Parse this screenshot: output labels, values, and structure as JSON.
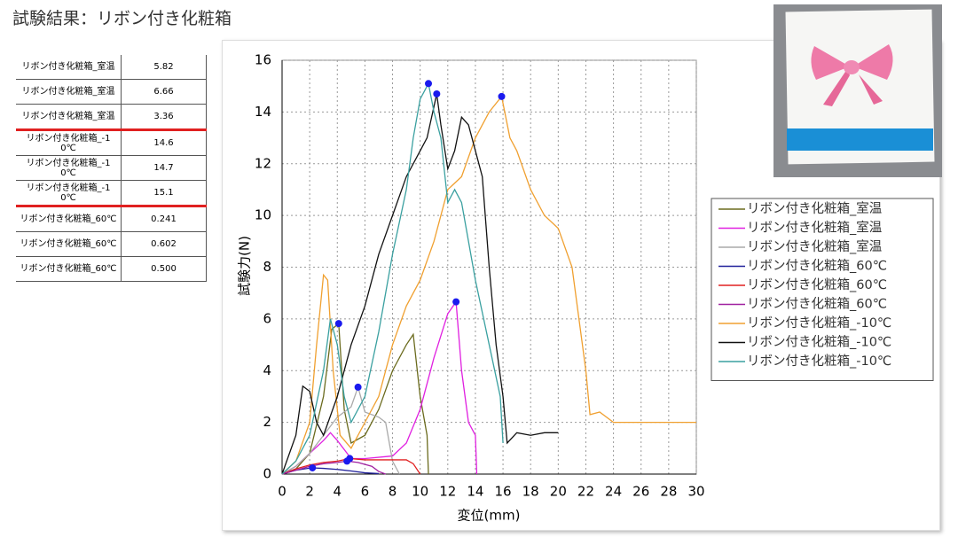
{
  "title": "試験結果：リボン付き化粧箱",
  "table": {
    "rows": [
      [
        "リボン付き化粧箱_室温",
        "5.82"
      ],
      [
        "リボン付き化粧箱_室温",
        "6.66"
      ],
      [
        "リボン付き化粧箱_室温",
        "3.36"
      ],
      [
        "リボン付き化粧箱_-10℃",
        "14.6"
      ],
      [
        "リボン付き化粧箱_-10℃",
        "14.7"
      ],
      [
        "リボン付き化粧箱_-10℃",
        "15.1"
      ],
      [
        "リボン付き化粧箱_60℃",
        "0.241"
      ],
      [
        "リボン付き化粧箱_60℃",
        "0.602"
      ],
      [
        "リボン付き化粧箱_60℃",
        "0.500"
      ]
    ]
  },
  "chart_data": {
    "type": "line",
    "x_label": "変位(mm)",
    "y_label": "試験力(N)",
    "xlim": [
      0,
      30
    ],
    "xticks": [
      0,
      2,
      4,
      6,
      8,
      10,
      12,
      14,
      16,
      18,
      20,
      22,
      24,
      26,
      28,
      30
    ],
    "ylim": [
      0,
      16
    ],
    "yticks": [
      0,
      2,
      4,
      6,
      8,
      10,
      12,
      14,
      16
    ],
    "grid": true,
    "legend": "right",
    "series": [
      {
        "name": "リボン付き化粧箱_室温",
        "color": "#6b6b1e",
        "peak": {
          "x": 4.1,
          "y": 5.82
        },
        "x": [
          0,
          1,
          2,
          3,
          3.6,
          4.1,
          4.5,
          5,
          6,
          7,
          8,
          9,
          9.5,
          10,
          10.5,
          10.6
        ],
        "values": [
          0,
          0.2,
          0.8,
          3,
          5.6,
          5.82,
          2.5,
          1.2,
          1.5,
          2.5,
          4,
          5,
          5.4,
          3,
          1.5,
          0
        ]
      },
      {
        "name": "リボン付き化粧箱_室温",
        "color": "#e020e0",
        "peak": {
          "x": 12.6,
          "y": 6.66
        },
        "x": [
          0,
          1,
          2,
          3,
          3.5,
          4,
          5,
          6,
          8,
          9,
          10,
          11,
          12,
          12.6,
          13,
          13.5,
          14,
          14.1
        ],
        "values": [
          0,
          0.3,
          0.8,
          1.3,
          1.6,
          1.3,
          0.6,
          0.6,
          0.7,
          1.2,
          2.5,
          4.5,
          6.2,
          6.66,
          4,
          2,
          1.5,
          0
        ]
      },
      {
        "name": "リボン付き化粧箱_室温",
        "color": "#aaaaaa",
        "peak": {
          "x": 5.5,
          "y": 3.36
        },
        "x": [
          0,
          1,
          2,
          3,
          4,
          5,
          5.5,
          6,
          7,
          7.5,
          8,
          8.5
        ],
        "values": [
          0,
          0.3,
          0.8,
          1.5,
          2.2,
          2.6,
          3.36,
          2.4,
          2.2,
          2,
          0.5,
          0
        ]
      },
      {
        "name": "リボン付き化粧箱_60℃",
        "color": "#20209a",
        "peak": {
          "x": 2.2,
          "y": 0.241
        },
        "x": [
          0,
          1,
          2,
          2.2,
          3,
          4,
          5,
          6,
          7
        ],
        "values": [
          0,
          0.15,
          0.23,
          0.241,
          0.22,
          0.18,
          0.12,
          0.05,
          0.02
        ]
      },
      {
        "name": "リボン付き化粧箱_60℃",
        "color": "#e02020",
        "peak": {
          "x": 4.9,
          "y": 0.602
        },
        "x": [
          0,
          1,
          2,
          3,
          4,
          4.9,
          6,
          8,
          9,
          9.5,
          10
        ],
        "values": [
          0,
          0.2,
          0.35,
          0.45,
          0.5,
          0.602,
          0.55,
          0.55,
          0.55,
          0.4,
          0
        ]
      },
      {
        "name": "リボン付き化粧箱_60℃",
        "color": "#a020a0",
        "peak": {
          "x": 4.7,
          "y": 0.5
        },
        "x": [
          0,
          1,
          2,
          3,
          4,
          4.7,
          5.5,
          6.5,
          7,
          7.5
        ],
        "values": [
          0,
          0.15,
          0.3,
          0.4,
          0.45,
          0.5,
          0.45,
          0.3,
          0.1,
          0
        ]
      },
      {
        "name": "リボン付き化粧箱_-10℃",
        "color": "#f0a030",
        "peak": {
          "x": 15.9,
          "y": 14.6
        },
        "x": [
          0,
          1,
          2,
          2.5,
          3,
          3.3,
          3.7,
          4.2,
          5,
          6,
          7,
          8,
          9,
          10,
          11,
          12,
          13,
          14,
          15,
          15.9,
          16.5,
          17,
          18,
          19,
          20,
          21,
          21.5,
          22,
          22.3,
          23,
          24,
          25,
          26,
          28,
          30
        ],
        "values": [
          0,
          0.5,
          2,
          5,
          7.7,
          7.5,
          4,
          1.5,
          1,
          2,
          3,
          5,
          6.5,
          7.5,
          9,
          11,
          11.5,
          13,
          14,
          14.6,
          13,
          12.5,
          11,
          10,
          9.5,
          8,
          6,
          4,
          2.3,
          2.4,
          2,
          2,
          2,
          2,
          2
        ]
      },
      {
        "name": "リボン付き化粧箱_-10℃",
        "color": "#111111",
        "peak": {
          "x": 11.2,
          "y": 14.7
        },
        "x": [
          0,
          1,
          1.5,
          2,
          2.5,
          3,
          4,
          5,
          6,
          7,
          8,
          9,
          10,
          10.5,
          11.2,
          11.5,
          12,
          12.5,
          13,
          13.5,
          14,
          14.5,
          15,
          15.5,
          16,
          16.3,
          17,
          18,
          19,
          20
        ],
        "values": [
          0,
          1.5,
          3.4,
          3.2,
          2,
          1.5,
          3,
          5,
          6.5,
          8.5,
          10,
          11.5,
          12.5,
          13,
          14.7,
          13.5,
          11.8,
          12.5,
          13.8,
          13.5,
          12.5,
          11.5,
          8,
          5,
          3,
          1.2,
          1.6,
          1.5,
          1.6,
          1.6
        ]
      },
      {
        "name": "リボン付き化粧箱_-10℃",
        "color": "#3aa0a0",
        "peak": {
          "x": 10.6,
          "y": 15.1
        },
        "x": [
          0,
          1,
          2,
          3,
          3.5,
          4,
          4.5,
          5,
          6,
          7,
          8,
          9,
          9.5,
          10,
          10.6,
          11,
          11.5,
          12,
          12.5,
          13,
          14,
          15,
          15.8,
          16
        ],
        "values": [
          0,
          0.5,
          1.5,
          4,
          6,
          5,
          3,
          2,
          3,
          5.5,
          8.5,
          11,
          13,
          14.5,
          15.1,
          14,
          13,
          10.5,
          11,
          10.5,
          7.5,
          5,
          3,
          1.2
        ]
      }
    ]
  }
}
